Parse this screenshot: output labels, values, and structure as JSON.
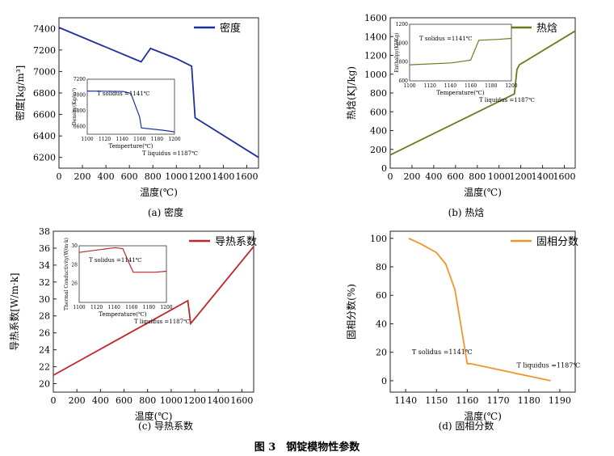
{
  "figure_caption": "图 3　钢锭模物性参数",
  "panels": [
    {
      "caption": "(a)  密度"
    },
    {
      "caption": "(b)  热焓"
    },
    {
      "caption": "(c)  导热系数"
    },
    {
      "caption": "(d)  固相分数"
    }
  ],
  "chart_data": [
    {
      "type": "line",
      "title": "",
      "xlabel": "温度(℃)",
      "ylabel": "密度[kg/m³]",
      "xlim": [
        0,
        1700
      ],
      "ylim": [
        6100,
        7500
      ],
      "xticks": [
        0,
        200,
        400,
        600,
        800,
        1000,
        1200,
        1400,
        1600
      ],
      "yticks": [
        6200,
        6400,
        6600,
        6800,
        7000,
        7200,
        7400
      ],
      "legend": "top-right",
      "color": "#1f2f9e",
      "series": [
        {
          "name": "密度",
          "x": [
            0,
            700,
            780,
            1000,
            1130,
            1160,
            1700
          ],
          "y": [
            7410,
            7090,
            7215,
            7120,
            7050,
            6570,
            6200
          ]
        }
      ],
      "inset": {
        "xlabel": "Temperture(℃)",
        "ylabel": "Density(Kg/m³)",
        "xlim": [
          1100,
          1200
        ],
        "ylim": [
          6500,
          7200
        ],
        "xticks": [
          1100,
          1120,
          1140,
          1160,
          1180,
          1200
        ],
        "yticks": [
          6600,
          6800,
          7000,
          7200
        ],
        "x": [
          1100,
          1141,
          1150,
          1160,
          1162,
          1187,
          1200
        ],
        "y": [
          7050,
          7045,
          7020,
          6720,
          6580,
          6550,
          6530
        ],
        "annotations": [
          {
            "text": "T solidus =1141℃"
          },
          {
            "text": "T liquidus =1187℃"
          }
        ]
      }
    },
    {
      "type": "line",
      "title": "",
      "xlabel": "温度(℃)",
      "ylabel": "热焓(KJ/kg)",
      "xlim": [
        0,
        1700
      ],
      "ylim": [
        0,
        1600
      ],
      "xticks": [
        0,
        200,
        400,
        600,
        800,
        1000,
        1200,
        1400,
        1600
      ],
      "yticks": [
        0,
        200,
        400,
        600,
        800,
        1000,
        1200,
        1400,
        1600
      ],
      "legend": "top-right",
      "color": "#6b7a1a",
      "series": [
        {
          "name": "热焓",
          "x": [
            0,
            1141,
            1165,
            1187,
            1700
          ],
          "y": [
            140,
            790,
            1050,
            1100,
            1460
          ]
        }
      ],
      "inset": {
        "xlabel": "Temperature(℃)",
        "ylabel": "Enthalpy(KJ/Kg)",
        "xlim": [
          1100,
          1200
        ],
        "ylim": [
          600,
          1200
        ],
        "xticks": [
          1100,
          1120,
          1140,
          1160,
          1180,
          1200
        ],
        "yticks": [
          600,
          800,
          1000,
          1200
        ],
        "x": [
          1100,
          1141,
          1160,
          1168,
          1187,
          1200
        ],
        "y": [
          770,
          790,
          820,
          1030,
          1040,
          1050
        ],
        "annotations": [
          {
            "text": "T solidus =1141℃"
          },
          {
            "text": "T liquidus =1187℃"
          }
        ]
      }
    },
    {
      "type": "line",
      "title": "",
      "xlabel": "温度(℃)",
      "ylabel": "导热系数[W/m·k]",
      "xlim": [
        0,
        1700
      ],
      "ylim": [
        19,
        38
      ],
      "xticks": [
        0,
        200,
        400,
        600,
        800,
        1000,
        1200,
        1400,
        1600
      ],
      "yticks": [
        20,
        22,
        24,
        26,
        28,
        30,
        32,
        34,
        36,
        38
      ],
      "legend": "top-right",
      "color": "#c0252b",
      "series": [
        {
          "name": "导热系数",
          "x": [
            0,
            1141,
            1165,
            1700
          ],
          "y": [
            21,
            29.8,
            27.1,
            36.2
          ]
        }
      ],
      "inset": {
        "xlabel": "Temperature(℃)",
        "ylabel": "Thermal Conductivity(W/m·k)",
        "xlim": [
          1100,
          1200
        ],
        "ylim": [
          24,
          30
        ],
        "xticks": [
          1100,
          1120,
          1140,
          1160,
          1180,
          1200
        ],
        "yticks": [
          26,
          28,
          30
        ],
        "x": [
          1100,
          1141,
          1150,
          1158,
          1162,
          1187,
          1200
        ],
        "y": [
          29.3,
          29.8,
          29.7,
          28.0,
          27.2,
          27.2,
          27.3
        ],
        "annotations": [
          {
            "text": "T solidus =1141℃"
          },
          {
            "text": "T liquidus =1187℃"
          }
        ]
      }
    },
    {
      "type": "line",
      "title": "",
      "xlabel": "温度(℃)",
      "ylabel": "固相分数(%)",
      "xlim": [
        1135,
        1195
      ],
      "ylim": [
        -8,
        105
      ],
      "xticks": [
        1140,
        1150,
        1160,
        1170,
        1180,
        1190
      ],
      "yticks": [
        0,
        20,
        40,
        60,
        80,
        100
      ],
      "legend": "top-right",
      "color": "#f0952b",
      "series": [
        {
          "name": "固相分数",
          "x": [
            1141,
            1145,
            1150,
            1153,
            1156,
            1158,
            1160,
            1161,
            1187
          ],
          "y": [
            100,
            96,
            90,
            82,
            64,
            38,
            12,
            12,
            0
          ]
        }
      ],
      "annotations": [
        {
          "text": "T solidus =1141℃"
        },
        {
          "text": "T liquidus =1187℃"
        }
      ]
    }
  ]
}
